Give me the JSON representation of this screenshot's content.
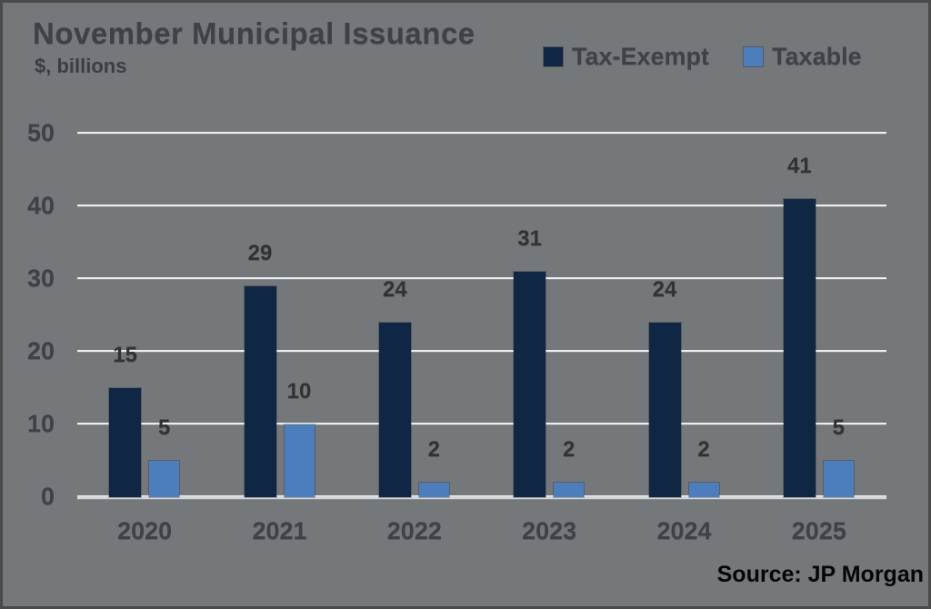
{
  "header": {
    "title": "November Municipal Issuance",
    "subtitle": "$, billions"
  },
  "legend": {
    "items": [
      {
        "label": "Tax-Exempt",
        "color": "#0F2645"
      },
      {
        "label": "Taxable",
        "color": "#4C7EBE"
      }
    ]
  },
  "source": "Source: JP Morgan",
  "colors": {
    "background": "#75787B",
    "tax_exempt_bar": "#0F2645",
    "taxable_bar": "#4C7EBE",
    "text_gray": "#3E4246",
    "gridline": "#EDEEEF"
  },
  "chart_data": {
    "type": "bar",
    "title": "November Municipal Issuance",
    "subtitle": "$, billions",
    "xlabel": "",
    "ylabel": "$, billions",
    "categories": [
      "2020",
      "2021",
      "2022",
      "2023",
      "2024",
      "2025"
    ],
    "series": [
      {
        "name": "Tax-Exempt",
        "color": "#0F2645",
        "values": [
          15,
          29,
          24,
          31,
          24,
          41
        ]
      },
      {
        "name": "Taxable",
        "color": "#4C7EBE",
        "values": [
          5,
          10,
          2,
          2,
          2,
          5
        ]
      }
    ],
    "ylim": [
      0,
      50
    ],
    "yticks": [
      0,
      10,
      20,
      30,
      40,
      50
    ],
    "grid": true,
    "legend_position": "top-right",
    "data_labels": true,
    "source": "Source: JP Morgan"
  }
}
